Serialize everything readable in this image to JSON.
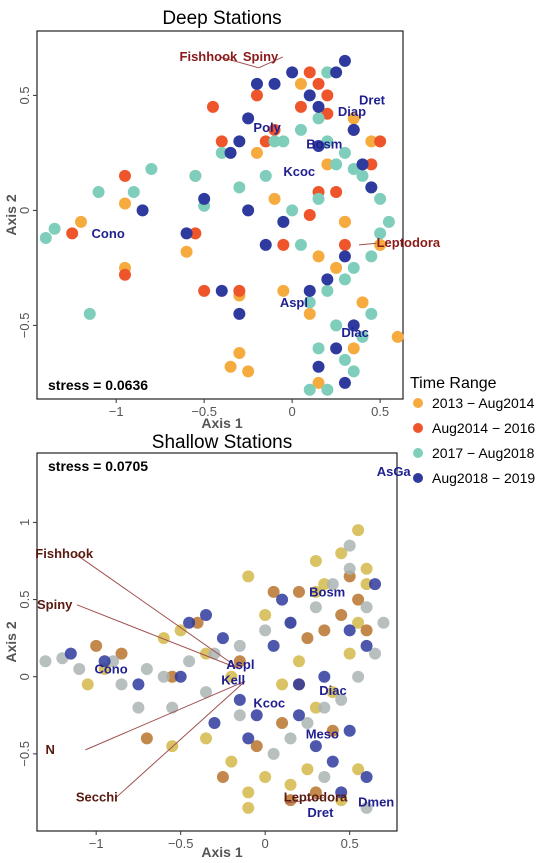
{
  "legend": {
    "title": "Time Range",
    "items": [
      {
        "label": "2013 − Aug2014",
        "color": "#f6ab3f"
      },
      {
        "label": "Aug2014 − 2016",
        "color": "#ef552b"
      },
      {
        "label": "2017 − Aug2018",
        "color": "#7fcdbb"
      },
      {
        "label": "Aug2018 − 2019",
        "color": "#2e3a9e"
      }
    ]
  },
  "chart_data": [
    {
      "type": "scatter",
      "title": "Deep Stations",
      "xlabel": "Axis 1",
      "ylabel": "Axis 2",
      "xlim": [
        -1.45,
        0.63
      ],
      "ylim": [
        -0.82,
        0.78
      ],
      "xticks": [
        -1,
        -0.5,
        0,
        0.5
      ],
      "xtick_labels": [
        "−1",
        "−0.5",
        "0",
        "0.5"
      ],
      "yticks": [
        -0.5,
        0,
        0.5
      ],
      "ytick_labels": [
        "−0.5",
        "0",
        "0.5"
      ],
      "stress": "stress = 0.0636",
      "series": [
        {
          "name": "2013 − Aug2014",
          "color": "#f6ab3f",
          "x": [
            -1.2,
            -0.95,
            -0.95,
            -0.6,
            -0.3,
            -0.3,
            -0.55,
            -0.2,
            -0.1,
            0.05,
            0.15,
            0.2,
            0.35,
            0.45,
            0.3,
            0.5,
            0.1,
            0.25,
            0.4,
            0.6,
            0.15,
            0.35,
            -0.35,
            -0.25,
            -0.05,
            0.2,
            0.3
          ],
          "y": [
            -0.05,
            -0.25,
            0.03,
            -0.18,
            -0.37,
            -0.62,
            0.15,
            0.25,
            0.05,
            0.55,
            -0.2,
            0.6,
            0.4,
            0.3,
            -0.05,
            -0.15,
            -0.45,
            -0.25,
            -0.4,
            -0.55,
            -0.75,
            -0.6,
            -0.68,
            -0.7,
            -0.35,
            0.2,
            -0.05
          ]
        },
        {
          "name": "Aug2014 − 2016",
          "color": "#ef552b",
          "x": [
            -1.25,
            -0.95,
            -0.95,
            -0.55,
            -0.5,
            -0.45,
            -0.2,
            -0.1,
            -0.15,
            0.05,
            0.1,
            0.15,
            0.2,
            0.35,
            0.45,
            0.5,
            0.3,
            0.25,
            0.15,
            0.1,
            -0.05,
            -0.3,
            -0.4,
            0.2
          ],
          "y": [
            -0.1,
            -0.28,
            0.15,
            -0.1,
            -0.35,
            0.45,
            0.5,
            0.35,
            0.3,
            0.45,
            0.6,
            0.55,
            0.42,
            0.35,
            0.2,
            0.3,
            -0.15,
            0.08,
            0.08,
            -0.02,
            -0.15,
            -0.35,
            0.3,
            0.5
          ]
        },
        {
          "name": "2017 − Aug2018",
          "color": "#7fcdbb",
          "x": [
            -1.4,
            -1.35,
            -1.15,
            -0.9,
            -0.8,
            -0.55,
            -0.5,
            -0.4,
            -0.3,
            -0.15,
            -0.05,
            0.05,
            0.15,
            0.2,
            0.25,
            0.3,
            0.35,
            0.4,
            0.45,
            0.5,
            0.55,
            0.5,
            0.45,
            0.35,
            0.3,
            0.2,
            0.1,
            0.05,
            -0.05,
            0.15,
            0.25,
            0.35,
            0.4,
            0.45,
            0.3,
            0.2,
            0.1,
            0.0,
            0.15,
            0.2,
            -0.1,
            -0.2,
            -1.1
          ],
          "y": [
            -0.12,
            -0.08,
            -0.45,
            0.08,
            0.18,
            0.15,
            0.02,
            0.25,
            0.1,
            0.15,
            0.3,
            0.35,
            0.4,
            0.3,
            0.2,
            0.25,
            0.18,
            0.15,
            0.1,
            0.05,
            -0.05,
            -0.1,
            -0.2,
            -0.25,
            -0.3,
            -0.35,
            -0.4,
            -0.15,
            -0.05,
            -0.6,
            -0.5,
            -0.7,
            -0.55,
            -0.45,
            -0.65,
            -0.78,
            -0.78,
            0.0,
            0.05,
            0.6,
            0.3,
            0.55,
            0.08
          ]
        },
        {
          "name": "Aug2018 − 2019",
          "color": "#2e3a9e",
          "x": [
            -0.85,
            -0.6,
            -0.35,
            -0.3,
            -0.25,
            -0.2,
            -0.1,
            0.0,
            0.1,
            0.15,
            0.25,
            0.3,
            0.35,
            0.4,
            0.45,
            0.3,
            0.2,
            0.1,
            -0.15,
            -0.4,
            -0.5,
            -0.3,
            0.15,
            0.25,
            0.35,
            -0.25,
            -0.05,
            0.15,
            0.3
          ],
          "y": [
            0.0,
            -0.1,
            0.25,
            0.3,
            0.4,
            0.55,
            0.55,
            0.6,
            0.5,
            0.45,
            0.6,
            0.65,
            0.35,
            0.2,
            0.1,
            -0.2,
            -0.3,
            -0.35,
            -0.15,
            -0.35,
            0.05,
            -0.45,
            -0.68,
            -0.6,
            -0.5,
            0.0,
            -0.05,
            0.28,
            -0.75
          ]
        }
      ],
      "species_labels": [
        "Poly",
        "Bosm",
        "Dret",
        "Diap",
        "Kcoc",
        "Cono",
        "Aspl",
        "Diac"
      ],
      "species_label_pos": [
        [
          -0.22,
          0.34
        ],
        [
          0.08,
          0.27
        ],
        [
          0.38,
          0.46
        ],
        [
          0.26,
          0.41
        ],
        [
          -0.05,
          0.15
        ],
        [
          -1.14,
          -0.12
        ],
        [
          -0.07,
          -0.42
        ],
        [
          0.28,
          -0.55
        ]
      ],
      "env_vectors": [
        {
          "label": "Fishhook",
          "end": [
            -0.19,
            0.62
          ],
          "label_pos": [
            -0.64,
            0.65
          ]
        },
        {
          "label": "Spiny",
          "end": [
            -0.19,
            0.62
          ],
          "label_pos": [
            -0.28,
            0.65
          ]
        },
        {
          "label": "Leptodora",
          "end": [
            0.38,
            -0.15
          ],
          "label_pos": [
            0.48,
            -0.16
          ]
        }
      ]
    },
    {
      "type": "scatter",
      "title": "Shallow Stations",
      "xlabel": "Axis 1",
      "ylabel": "Axis 2",
      "xlim": [
        -1.35,
        0.78
      ],
      "ylim": [
        -1.0,
        1.45
      ],
      "xticks": [
        -1,
        -0.5,
        0,
        0.5
      ],
      "xtick_labels": [
        "−1",
        "−0.5",
        "0",
        "0.5"
      ],
      "yticks": [
        -0.5,
        0,
        0.5,
        1
      ],
      "ytick_labels": [
        "−0.5",
        "0",
        "0.5",
        "1"
      ],
      "stress": "stress = 0.0705",
      "series": [
        {
          "name": "2013 − Aug2014",
          "color": "#d4b84a",
          "x": [
            -1.05,
            -0.95,
            -0.6,
            -0.5,
            -0.35,
            -0.2,
            -0.1,
            0.0,
            0.1,
            0.2,
            0.3,
            0.35,
            0.45,
            0.55,
            0.6,
            0.55,
            0.5,
            0.4,
            0.3,
            0.25,
            0.15,
            0.0,
            -0.1,
            -0.2,
            -0.35,
            -0.55,
            0.45,
            0.55,
            0.3,
            -0.1,
            0.6
          ],
          "y": [
            -0.05,
            0.05,
            0.25,
            0.3,
            0.15,
            0.0,
            0.65,
            0.4,
            -0.05,
            0.1,
            0.55,
            0.6,
            0.8,
            0.95,
            0.6,
            0.35,
            0.15,
            -0.1,
            -0.2,
            -0.6,
            -0.7,
            -0.65,
            -0.75,
            -0.55,
            -0.4,
            -0.45,
            -0.8,
            -0.6,
            0.75,
            -0.85,
            0.7
          ]
        },
        {
          "name": "Aug2014 − 2016",
          "color": "#b8732c",
          "x": [
            -1.0,
            -0.85,
            -0.55,
            -0.4,
            -0.15,
            0.05,
            0.2,
            0.25,
            0.35,
            0.45,
            0.5,
            0.55,
            0.6,
            0.4,
            0.2,
            0.1,
            -0.05,
            -0.25,
            -0.7,
            0.3,
            0.15
          ],
          "y": [
            0.2,
            0.15,
            0.0,
            0.35,
            0.1,
            0.55,
            0.55,
            0.25,
            0.3,
            0.4,
            0.65,
            0.5,
            0.3,
            -0.35,
            -0.05,
            -0.3,
            -0.45,
            -0.65,
            -0.4,
            -0.75,
            -0.8
          ]
        },
        {
          "name": "2017 − Aug2018",
          "color": "#aab4b4",
          "x": [
            -1.3,
            -1.2,
            -1.1,
            -0.9,
            -0.75,
            -0.6,
            -0.45,
            -0.3,
            -0.15,
            0.0,
            0.15,
            0.3,
            0.4,
            0.5,
            0.6,
            0.7,
            0.65,
            0.55,
            0.45,
            0.35,
            0.25,
            0.15,
            0.05,
            -0.15,
            -0.35,
            -0.55,
            -0.7,
            -0.85,
            0.5,
            0.35,
            0.6
          ],
          "y": [
            0.1,
            0.12,
            0.05,
            0.1,
            -0.2,
            0.0,
            0.1,
            0.15,
            0.2,
            0.3,
            0.35,
            0.45,
            0.6,
            0.7,
            0.45,
            0.35,
            0.15,
            0.0,
            -0.15,
            -0.2,
            -0.3,
            -0.4,
            -0.5,
            -0.25,
            -0.1,
            -0.2,
            0.05,
            -0.05,
            0.85,
            -0.65,
            -0.85
          ]
        },
        {
          "name": "Aug2018 − 2019",
          "color": "#2e3a9e",
          "x": [
            -1.15,
            -0.95,
            -0.75,
            -0.45,
            -0.35,
            -0.25,
            -0.15,
            -0.05,
            0.05,
            0.2,
            0.35,
            0.5,
            0.6,
            0.65,
            0.5,
            0.4,
            0.3,
            0.2,
            0.1,
            -0.1,
            -0.3,
            -0.5,
            0.45,
            0.6,
            0.15
          ],
          "y": [
            0.15,
            0.1,
            -0.05,
            0.35,
            0.4,
            0.25,
            -0.15,
            -0.25,
            0.2,
            -0.25,
            0.0,
            0.3,
            0.2,
            0.6,
            -0.35,
            -0.55,
            -0.45,
            -0.05,
            0.5,
            -0.4,
            -0.3,
            0.0,
            -0.75,
            -0.65,
            0.35
          ]
        }
      ],
      "species_labels": [
        "AsGa",
        "Bosm",
        "Cono",
        "Aspl",
        "Kell",
        "Kcoc",
        "Diac",
        "Meso",
        "Dmen",
        "Dret"
      ],
      "species_label_pos": [
        [
          0.66,
          1.3
        ],
        [
          0.26,
          0.52
        ],
        [
          -1.01,
          0.02
        ],
        [
          -0.23,
          0.05
        ],
        [
          -0.26,
          -0.05
        ],
        [
          -0.07,
          -0.2
        ],
        [
          0.32,
          -0.12
        ],
        [
          0.24,
          -0.4
        ],
        [
          0.55,
          -0.84
        ],
        [
          0.25,
          -0.91
        ]
      ],
      "env_vectors": [
        {
          "label": "Fishhook",
          "end": [
            -0.15,
            0.05
          ],
          "label_pos": [
            -1.36,
            0.77
          ]
        },
        {
          "label": "Spiny",
          "end": [
            -0.15,
            0.05
          ],
          "label_pos": [
            -1.35,
            0.44
          ]
        },
        {
          "label": "N",
          "end": [
            -0.12,
            -0.03
          ],
          "label_pos": [
            -1.3,
            -0.5
          ]
        },
        {
          "label": "Secchi",
          "end": [
            -0.12,
            -0.03
          ],
          "label_pos": [
            -1.12,
            -0.81
          ]
        },
        {
          "label": "Leptodora",
          "end": [
            0.12,
            -0.82
          ],
          "label_pos": [
            0.11,
            -0.81
          ]
        }
      ]
    }
  ]
}
